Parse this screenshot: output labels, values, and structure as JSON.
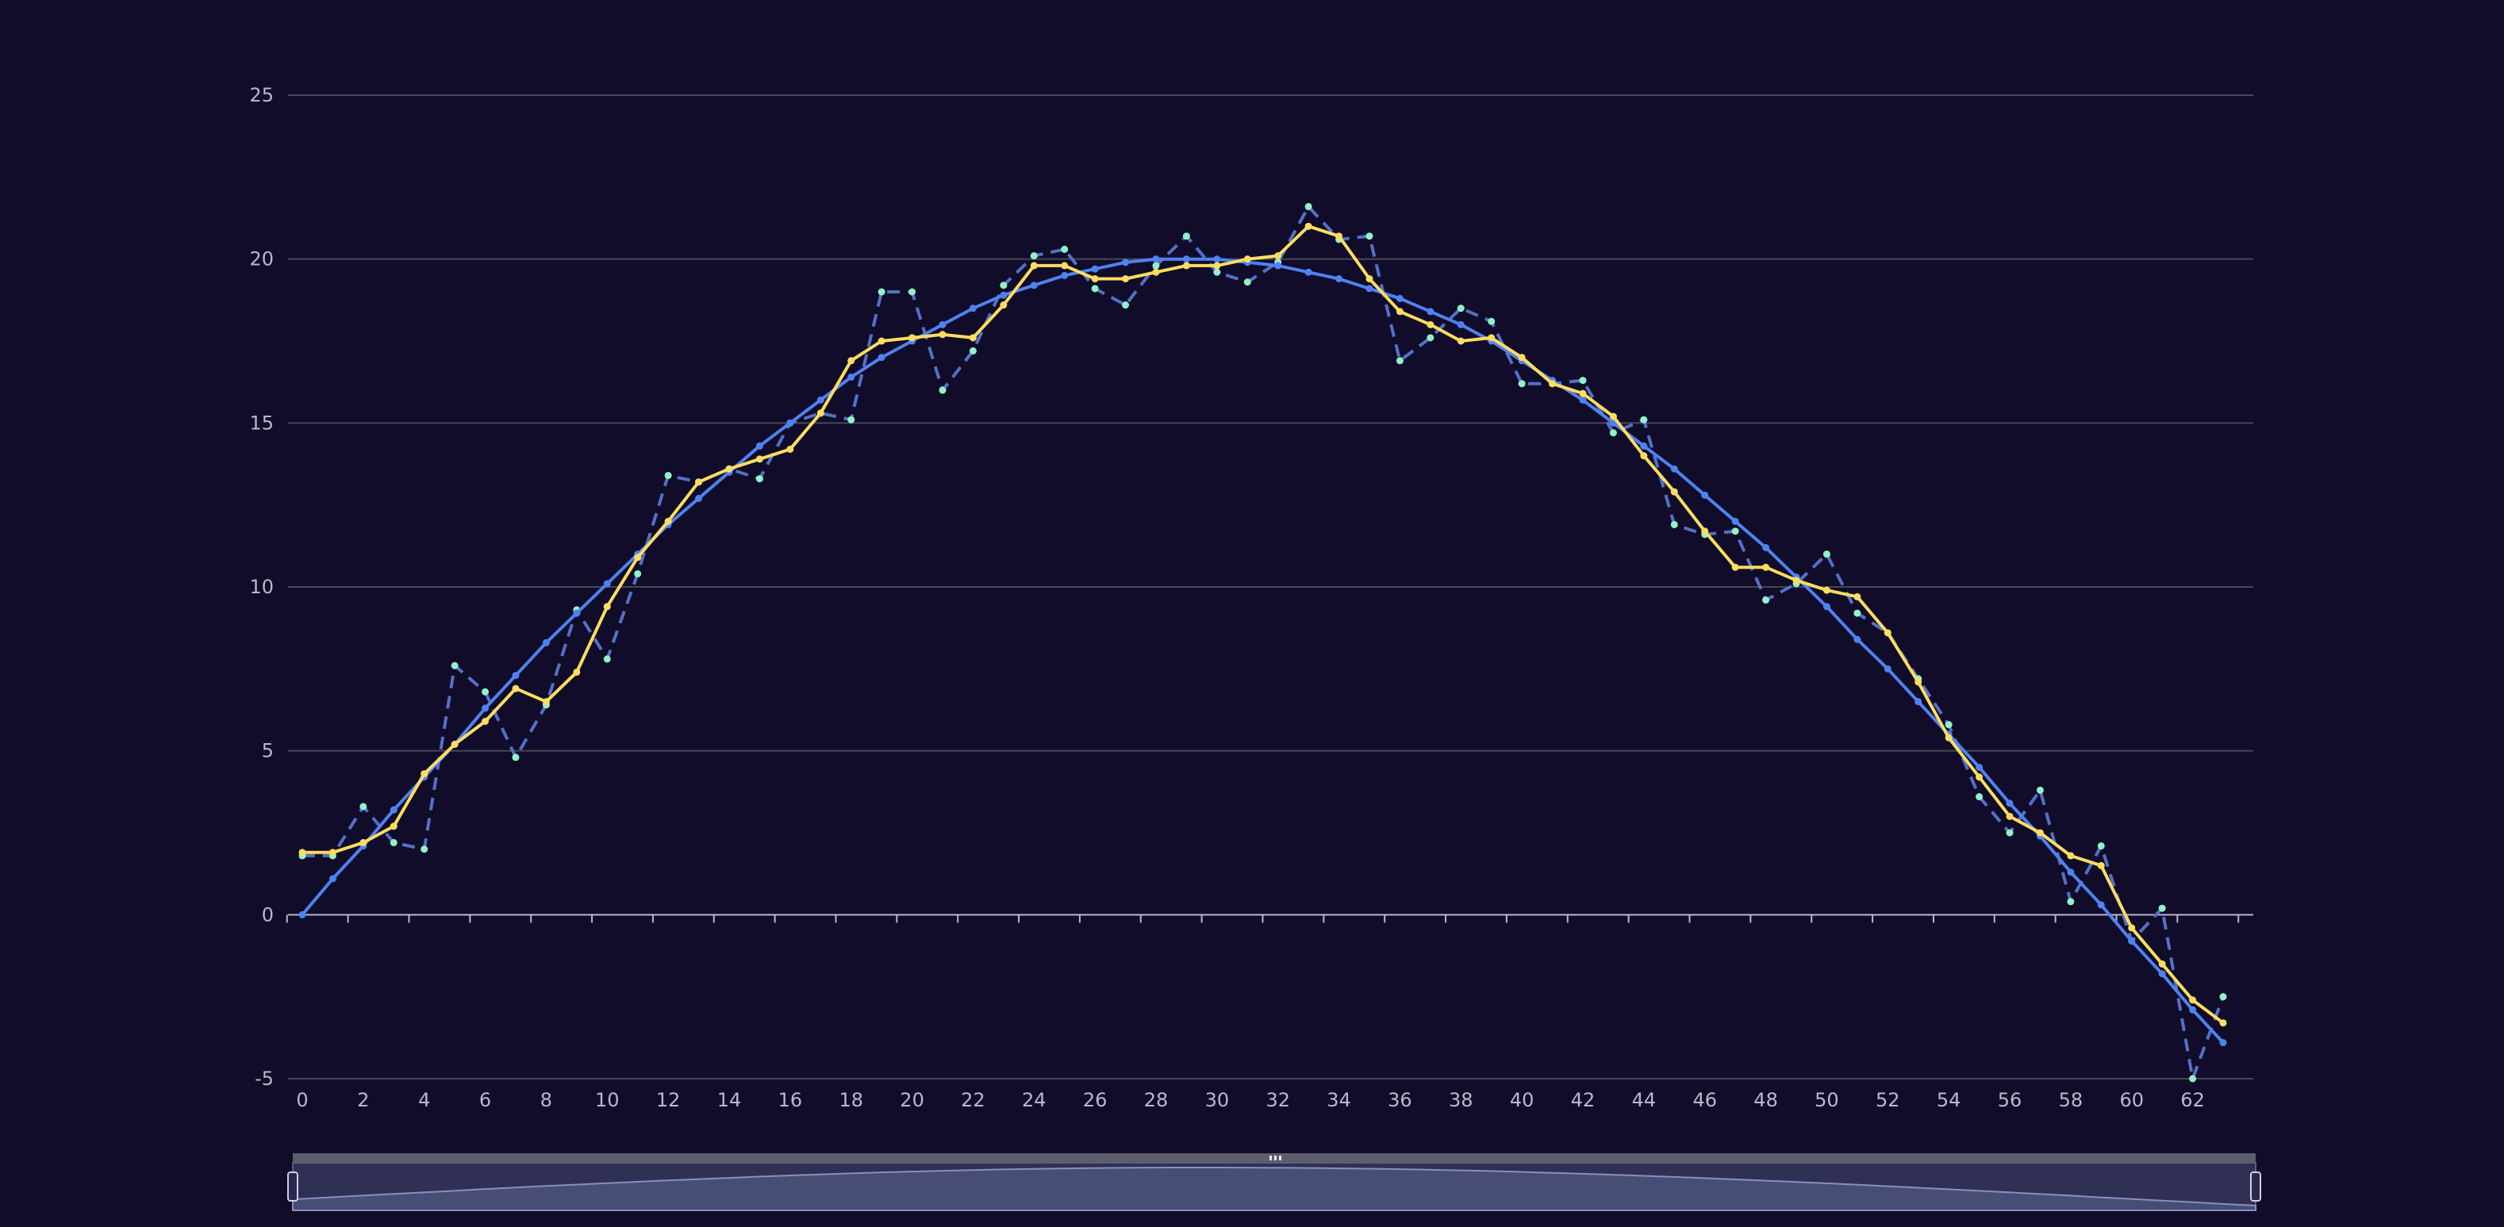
{
  "chart_data": {
    "type": "line",
    "x": [
      0,
      1,
      2,
      3,
      4,
      5,
      6,
      7,
      8,
      9,
      10,
      11,
      12,
      13,
      14,
      15,
      16,
      17,
      18,
      19,
      20,
      21,
      22,
      23,
      24,
      25,
      26,
      27,
      28,
      29,
      30,
      31,
      32,
      33,
      34,
      35,
      36,
      37,
      38,
      39,
      40,
      41,
      42,
      43,
      44,
      45,
      46,
      47,
      48,
      49,
      50,
      51,
      52,
      53,
      54,
      55,
      56,
      57,
      58,
      59,
      60,
      61,
      62,
      63
    ],
    "xlim": [
      0,
      63
    ],
    "ylim": [
      -5,
      25
    ],
    "x_ticks": [
      "0",
      "2",
      "4",
      "6",
      "8",
      "10",
      "12",
      "14",
      "16",
      "18",
      "20",
      "22",
      "24",
      "26",
      "28",
      "30",
      "32",
      "34",
      "36",
      "38",
      "40",
      "42",
      "44",
      "46",
      "48",
      "50",
      "52",
      "54",
      "56",
      "58",
      "60",
      "62"
    ],
    "y_ticks": [
      "-5",
      "0",
      "5",
      "10",
      "15",
      "20",
      "25"
    ],
    "grid": true,
    "series": [
      {
        "style": "dashed",
        "color": "#5470c6",
        "marker_color": "#91f2c7",
        "values": [
          1.8,
          1.8,
          3.3,
          2.2,
          2.0,
          7.6,
          6.8,
          4.8,
          6.4,
          9.3,
          7.8,
          10.4,
          13.4,
          13.2,
          13.6,
          13.3,
          15.0,
          15.3,
          15.1,
          19.0,
          19.0,
          16.0,
          17.2,
          19.2,
          20.1,
          20.3,
          19.1,
          18.6,
          19.8,
          20.7,
          19.6,
          19.3,
          19.9,
          21.6,
          20.6,
          20.7,
          16.9,
          17.6,
          18.5,
          18.1,
          16.2,
          16.2,
          16.3,
          14.7,
          15.1,
          11.9,
          11.6,
          11.7,
          9.6,
          10.1,
          11.0,
          9.2,
          8.6,
          7.2,
          5.8,
          3.6,
          2.5,
          3.8,
          0.4,
          2.1,
          -0.8,
          0.2,
          -5.0,
          -2.5
        ]
      },
      {
        "style": "solid",
        "color": "#4f82f0",
        "marker_color": "#4f82f0",
        "values": [
          0.0,
          1.1,
          2.1,
          3.2,
          4.2,
          5.2,
          6.3,
          7.3,
          8.3,
          9.2,
          10.1,
          11.0,
          11.9,
          12.7,
          13.5,
          14.3,
          15.0,
          15.7,
          16.4,
          17.0,
          17.5,
          18.0,
          18.5,
          18.9,
          19.2,
          19.5,
          19.7,
          19.9,
          20.0,
          20.0,
          20.0,
          19.9,
          19.8,
          19.6,
          19.4,
          19.1,
          18.8,
          18.4,
          18.0,
          17.5,
          16.9,
          16.3,
          15.7,
          15.0,
          14.3,
          13.6,
          12.8,
          12.0,
          11.2,
          10.3,
          9.4,
          8.4,
          7.5,
          6.5,
          5.5,
          4.5,
          3.4,
          2.4,
          1.3,
          0.3,
          -0.8,
          -1.8,
          -2.9,
          -3.9
        ]
      },
      {
        "style": "solid",
        "color": "#fddd60",
        "marker_color": "#fddd60",
        "values": [
          1.9,
          1.9,
          2.2,
          2.7,
          4.3,
          5.2,
          5.9,
          6.9,
          6.5,
          7.4,
          9.4,
          10.9,
          12.0,
          13.2,
          13.6,
          13.9,
          14.2,
          15.3,
          16.9,
          17.5,
          17.6,
          17.7,
          17.6,
          18.6,
          19.8,
          19.8,
          19.4,
          19.4,
          19.6,
          19.8,
          19.8,
          20.0,
          20.1,
          21.0,
          20.7,
          19.4,
          18.4,
          18.0,
          17.5,
          17.6,
          17.0,
          16.2,
          15.9,
          15.2,
          14.0,
          12.9,
          11.7,
          10.6,
          10.6,
          10.2,
          9.9,
          9.7,
          8.6,
          7.1,
          5.4,
          4.2,
          3.0,
          2.5,
          1.8,
          1.5,
          -0.4,
          -1.5,
          -2.6,
          -3.3
        ]
      }
    ],
    "data_zoom": {
      "start": 0,
      "end": 100
    }
  }
}
